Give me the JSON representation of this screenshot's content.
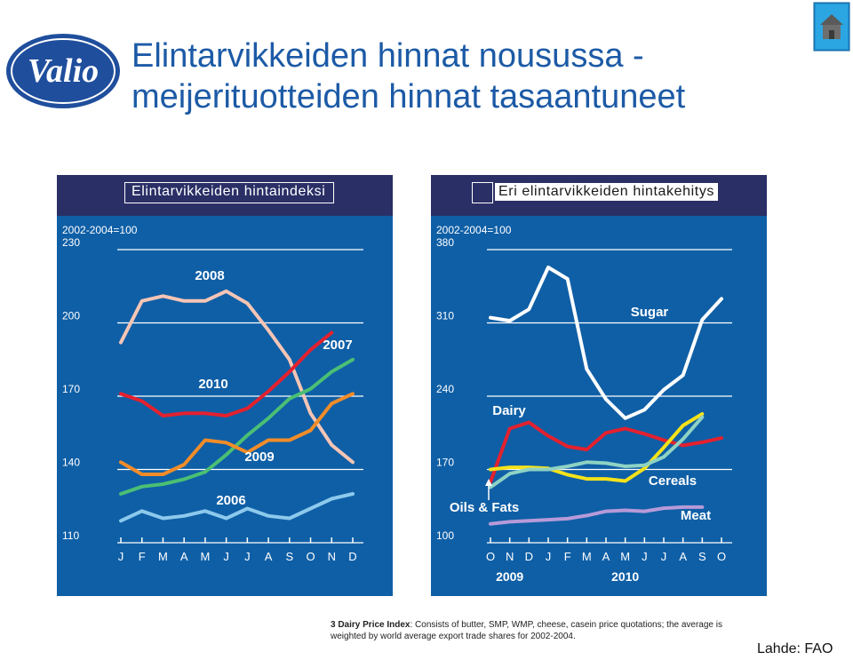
{
  "header": {
    "logo_text": "Valio",
    "title_line1": "Elintarvikkeiden hinnat nousussa  -",
    "title_line2": "meijerituotteiden hinnat tasaantuneet"
  },
  "icons": {
    "home": "home-icon"
  },
  "colors": {
    "panel_bg": "#0f5fa6",
    "panel_header": "#2a2f66",
    "title": "#1c5aa6"
  },
  "footnote": {
    "label": "3 Dairy Price Index",
    "text": ": Consists of butter, SMP, WMP, cheese, casein price quotations; the average is weighted by world average export trade shares for 2002-2004."
  },
  "source": "Lahde: FAO",
  "chart_data": [
    {
      "type": "line",
      "title": "Elintarvikkeiden hintaindeksi",
      "index_note": "2002-2004=100",
      "ylim": [
        110,
        230
      ],
      "y_ticks": [
        110,
        140,
        170,
        200,
        230
      ],
      "categories": [
        "J",
        "F",
        "M",
        "A",
        "M",
        "J",
        "J",
        "A",
        "S",
        "O",
        "N",
        "D"
      ],
      "series": [
        {
          "name": "2008",
          "color": "#f5c5b5",
          "values": [
            192,
            209,
            211,
            209,
            209,
            213,
            208,
            197,
            185,
            163,
            150,
            143
          ]
        },
        {
          "name": "2010",
          "color": "#e3212f",
          "values": [
            171,
            168,
            162,
            163,
            163,
            162,
            165,
            172,
            180,
            189,
            196,
            null
          ]
        },
        {
          "name": "2007",
          "color": "#4bbf74",
          "values": [
            130,
            133,
            134,
            136,
            139,
            146,
            154,
            161,
            169,
            173,
            180,
            185
          ]
        },
        {
          "name": "2009",
          "color": "#f28c28",
          "values": [
            143,
            138,
            138,
            142,
            152,
            151,
            147,
            152,
            152,
            156,
            167,
            171
          ]
        },
        {
          "name": "2006",
          "color": "#8cc9ec",
          "values": [
            119,
            123,
            120,
            121,
            123,
            120,
            124,
            121,
            120,
            124,
            128,
            130
          ]
        }
      ],
      "grid": true
    },
    {
      "type": "line",
      "title": "Eri elintarvikkeiden hintakehitys",
      "index_note": "2002-2004=100",
      "ylim": [
        100,
        380
      ],
      "y_ticks": [
        100,
        170,
        240,
        310,
        380
      ],
      "categories": [
        "O",
        "N",
        "D",
        "J",
        "F",
        "M",
        "A",
        "M",
        "J",
        "J",
        "A",
        "S",
        "O"
      ],
      "year_labels": [
        {
          "text": "2009",
          "at": 1
        },
        {
          "text": "2010",
          "at": 7
        }
      ],
      "series": [
        {
          "name": "Sugar",
          "color": "#ffffff",
          "values": [
            315,
            312,
            323,
            363,
            352,
            266,
            237,
            219,
            227,
            246,
            260,
            313,
            333
          ]
        },
        {
          "name": "Dairy",
          "color": "#e3212f",
          "values": [
            158,
            209,
            215,
            202,
            192,
            189,
            205,
            209,
            204,
            198,
            193,
            196,
            200
          ]
        },
        {
          "name": "Cereals",
          "color": "#f5e21a",
          "values": [
            170,
            172,
            172,
            171,
            165,
            161,
            161,
            159,
            171,
            191,
            212,
            223,
            null
          ]
        },
        {
          "name": "Oils & Fats",
          "color": "#8ed2c4",
          "values": [
            153,
            166,
            170,
            170,
            173,
            177,
            176,
            173,
            174,
            182,
            199,
            220,
            null
          ]
        },
        {
          "name": "Meat",
          "color": "#b79ad8",
          "values": [
            118,
            120,
            121,
            122,
            123,
            126,
            130,
            131,
            130,
            133,
            134,
            134,
            null
          ]
        }
      ],
      "grid": true
    }
  ]
}
